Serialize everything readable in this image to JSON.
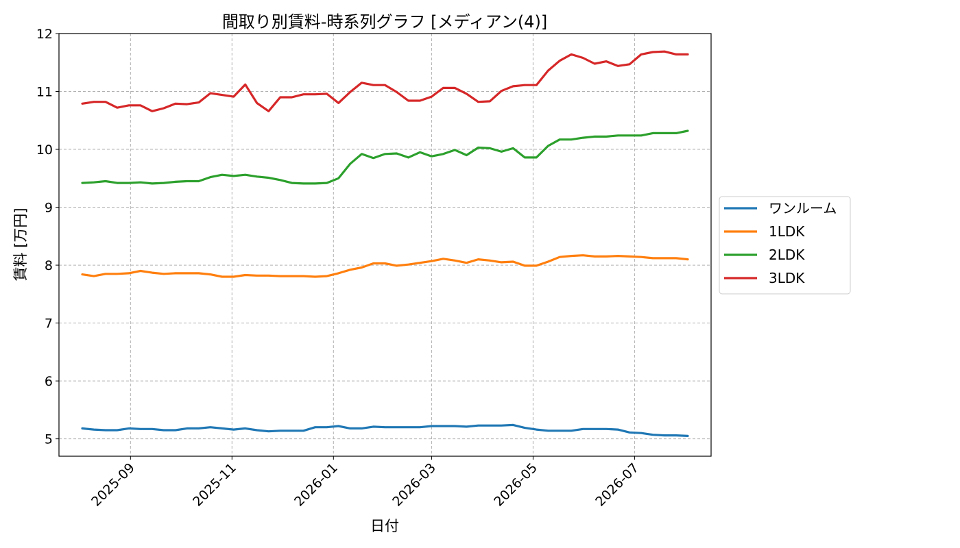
{
  "chart_data": {
    "type": "line",
    "title": "間取り別賃料-時系列グラフ [メディアン(4)]",
    "xlabel": "日付",
    "ylabel": "賃料 [万円]",
    "ylim": [
      4.7,
      12.0
    ],
    "yticks": [
      5,
      6,
      7,
      8,
      9,
      10,
      11,
      12
    ],
    "xlim": [
      "2025-07-20",
      "2026-08-16"
    ],
    "xticks": [
      "2025-09-01",
      "2025-11-01",
      "2026-01-01",
      "2026-03-01",
      "2026-05-01",
      "2026-07-01"
    ],
    "xtick_labels": [
      "2025-09",
      "2025-11",
      "2026-01",
      "2026-03",
      "2026-05",
      "2026-07"
    ],
    "grid": true,
    "legend_position": "center-right-outside",
    "x": [
      "2025-08-03",
      "2025-08-10",
      "2025-08-17",
      "2025-08-24",
      "2025-08-31",
      "2025-09-07",
      "2025-09-14",
      "2025-09-21",
      "2025-09-28",
      "2025-10-05",
      "2025-10-12",
      "2025-10-19",
      "2025-10-26",
      "2025-11-02",
      "2025-11-09",
      "2025-11-16",
      "2025-11-23",
      "2025-11-30",
      "2025-12-07",
      "2025-12-14",
      "2025-12-21",
      "2025-12-28",
      "2026-01-04",
      "2026-01-11",
      "2026-01-18",
      "2026-01-25",
      "2026-02-01",
      "2026-02-08",
      "2026-02-15",
      "2026-02-22",
      "2026-03-01",
      "2026-03-08",
      "2026-03-15",
      "2026-03-22",
      "2026-03-29",
      "2026-04-05",
      "2026-04-12",
      "2026-04-19",
      "2026-04-26",
      "2026-05-03",
      "2026-05-10",
      "2026-05-17",
      "2026-05-24",
      "2026-05-31",
      "2026-06-07",
      "2026-06-14",
      "2026-06-21",
      "2026-06-28",
      "2026-07-05",
      "2026-07-12",
      "2026-07-19",
      "2026-07-26",
      "2026-08-02"
    ],
    "series": [
      {
        "name": "ワンルーム",
        "color": "#1f77b4",
        "values": [
          5.18,
          5.16,
          5.15,
          5.15,
          5.18,
          5.17,
          5.17,
          5.15,
          5.15,
          5.18,
          5.18,
          5.2,
          5.18,
          5.16,
          5.18,
          5.15,
          5.13,
          5.14,
          5.14,
          5.14,
          5.2,
          5.2,
          5.22,
          5.18,
          5.18,
          5.21,
          5.2,
          5.2,
          5.2,
          5.2,
          5.22,
          5.22,
          5.22,
          5.21,
          5.23,
          5.23,
          5.23,
          5.24,
          5.19,
          5.16,
          5.14,
          5.14,
          5.14,
          5.17,
          5.17,
          5.17,
          5.16,
          5.11,
          5.1,
          5.07,
          5.06,
          5.06,
          5.05
        ]
      },
      {
        "name": "1LDK",
        "color": "#ff7f0e",
        "values": [
          7.84,
          7.81,
          7.85,
          7.85,
          7.86,
          7.9,
          7.87,
          7.85,
          7.86,
          7.86,
          7.86,
          7.84,
          7.8,
          7.8,
          7.83,
          7.82,
          7.82,
          7.81,
          7.81,
          7.81,
          7.8,
          7.81,
          7.86,
          7.92,
          7.96,
          8.03,
          8.03,
          7.99,
          8.01,
          8.04,
          8.07,
          8.11,
          8.08,
          8.04,
          8.1,
          8.08,
          8.05,
          8.06,
          7.99,
          7.99,
          8.06,
          8.14,
          8.16,
          8.17,
          8.15,
          8.15,
          8.16,
          8.15,
          8.14,
          8.12,
          8.12,
          8.12,
          8.1
        ]
      },
      {
        "name": "2LDK",
        "color": "#2ca02c",
        "values": [
          9.42,
          9.43,
          9.45,
          9.42,
          9.42,
          9.43,
          9.41,
          9.42,
          9.44,
          9.45,
          9.45,
          9.52,
          9.56,
          9.54,
          9.56,
          9.53,
          9.51,
          9.47,
          9.42,
          9.41,
          9.41,
          9.42,
          9.5,
          9.75,
          9.92,
          9.85,
          9.92,
          9.93,
          9.86,
          9.95,
          9.88,
          9.92,
          9.99,
          9.9,
          10.03,
          10.02,
          9.96,
          10.02,
          9.86,
          9.86,
          10.06,
          10.17,
          10.17,
          10.2,
          10.22,
          10.22,
          10.24,
          10.24,
          10.24,
          10.28,
          10.28,
          10.28,
          10.32
        ]
      },
      {
        "name": "3LDK",
        "color": "#d62728",
        "values": [
          10.79,
          10.82,
          10.82,
          10.72,
          10.76,
          10.76,
          10.66,
          10.71,
          10.79,
          10.78,
          10.81,
          10.97,
          10.94,
          10.91,
          11.12,
          10.8,
          10.66,
          10.9,
          10.9,
          10.95,
          10.95,
          10.96,
          10.8,
          10.99,
          11.15,
          11.11,
          11.11,
          10.99,
          10.84,
          10.84,
          10.91,
          11.06,
          11.06,
          10.96,
          10.82,
          10.83,
          11.01,
          11.09,
          11.11,
          11.11,
          11.36,
          11.53,
          11.64,
          11.58,
          11.48,
          11.52,
          11.44,
          11.47,
          11.64,
          11.68,
          11.69,
          11.64,
          11.64
        ]
      }
    ]
  }
}
